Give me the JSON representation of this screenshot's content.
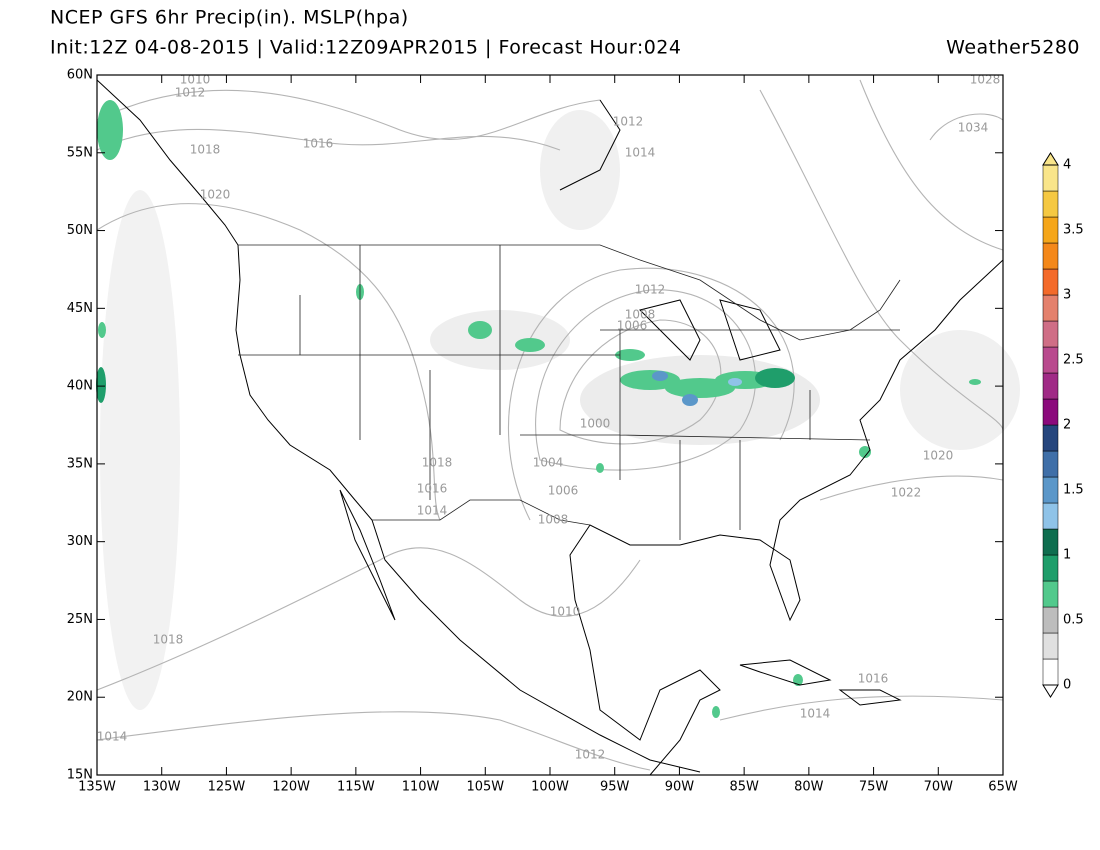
{
  "header": {
    "title": "NCEP GFS 6hr Precip(in). MSLP(hpa)",
    "subtitle": "Init:12Z 04-08-2015 | Valid:12Z09APR2015 | Forecast Hour:024",
    "brand": "Weather5280"
  },
  "lat_labels": [
    "60N",
    "55N",
    "50N",
    "45N",
    "40N",
    "35N",
    "30N",
    "25N",
    "20N",
    "15N"
  ],
  "lon_labels": [
    "135W",
    "130W",
    "125W",
    "120W",
    "115W",
    "110W",
    "105W",
    "100W",
    "95W",
    "90W",
    "85W",
    "80W",
    "75W",
    "70W",
    "65W"
  ],
  "colorbar": {
    "labels": [
      "4",
      "3.5",
      "3",
      "2.5",
      "2",
      "1.5",
      "1",
      "0.5",
      "0"
    ],
    "colors": [
      "#ffffff",
      "#e0e0e0",
      "#bdbdbd",
      "#52c98c",
      "#1f9e6b",
      "#0f6e4f",
      "#8fc3e8",
      "#5b97c9",
      "#3f6fa8",
      "#26467d",
      "#8b0a7c",
      "#a02a86",
      "#b94a8e",
      "#cf6e86",
      "#e4816d",
      "#f36a2a",
      "#f4881a",
      "#f5a61a",
      "#f5c842",
      "#f9e58a"
    ]
  },
  "isobars": [
    "1010",
    "1012",
    "1018",
    "1016",
    "1020",
    "1012",
    "1014",
    "1034",
    "1028",
    "1012",
    "1008",
    "1006",
    "1000",
    "1004",
    "1006",
    "1008",
    "1018",
    "1016",
    "1014",
    "1010",
    "1018",
    "1014",
    "1012",
    "1014",
    "1016",
    "1020",
    "1022"
  ]
}
